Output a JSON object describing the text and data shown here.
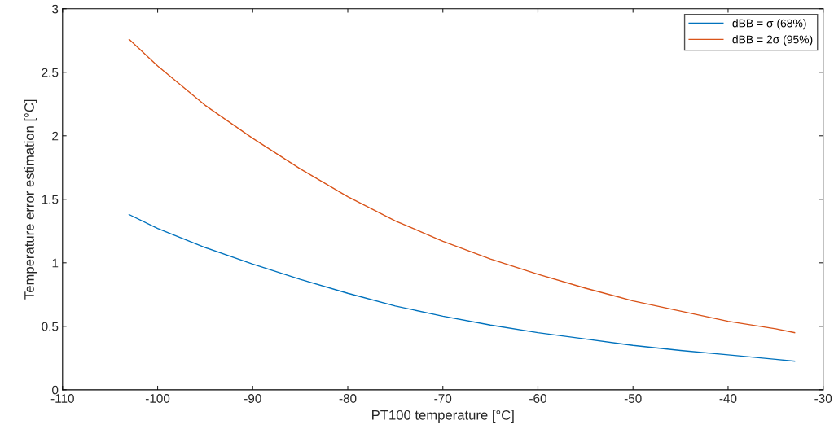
{
  "chart_data": {
    "type": "line",
    "xlabel": "PT100 temperature [°C]",
    "ylabel": "Temperature error estimation [°C]",
    "xlim": [
      -110,
      -30
    ],
    "xticks": [
      -110,
      -100,
      -90,
      -80,
      -70,
      -60,
      -50,
      -40,
      -30
    ],
    "ylim": [
      0,
      3
    ],
    "yticks": [
      0,
      0.5,
      1,
      1.5,
      2,
      2.5,
      3
    ],
    "grid": false,
    "legend": "top right",
    "marker": "none",
    "line_style": "solid",
    "x": [
      -103,
      -100,
      -95,
      -90,
      -85,
      -80,
      -75,
      -70,
      -65,
      -60,
      -55,
      -50,
      -45,
      -40,
      -35,
      -33
    ],
    "series": [
      {
        "name": "dBB = σ (68%)",
        "color": "#0072bd",
        "values": [
          1.38,
          1.27,
          1.12,
          0.99,
          0.87,
          0.76,
          0.66,
          0.58,
          0.51,
          0.45,
          0.4,
          0.35,
          0.31,
          0.275,
          0.24,
          0.225
        ]
      },
      {
        "name": "dBB = 2σ (95%)",
        "color": "#d95319",
        "values": [
          2.76,
          2.55,
          2.24,
          1.98,
          1.74,
          1.52,
          1.33,
          1.17,
          1.03,
          0.91,
          0.8,
          0.7,
          0.62,
          0.54,
          0.48,
          0.45
        ]
      }
    ]
  }
}
